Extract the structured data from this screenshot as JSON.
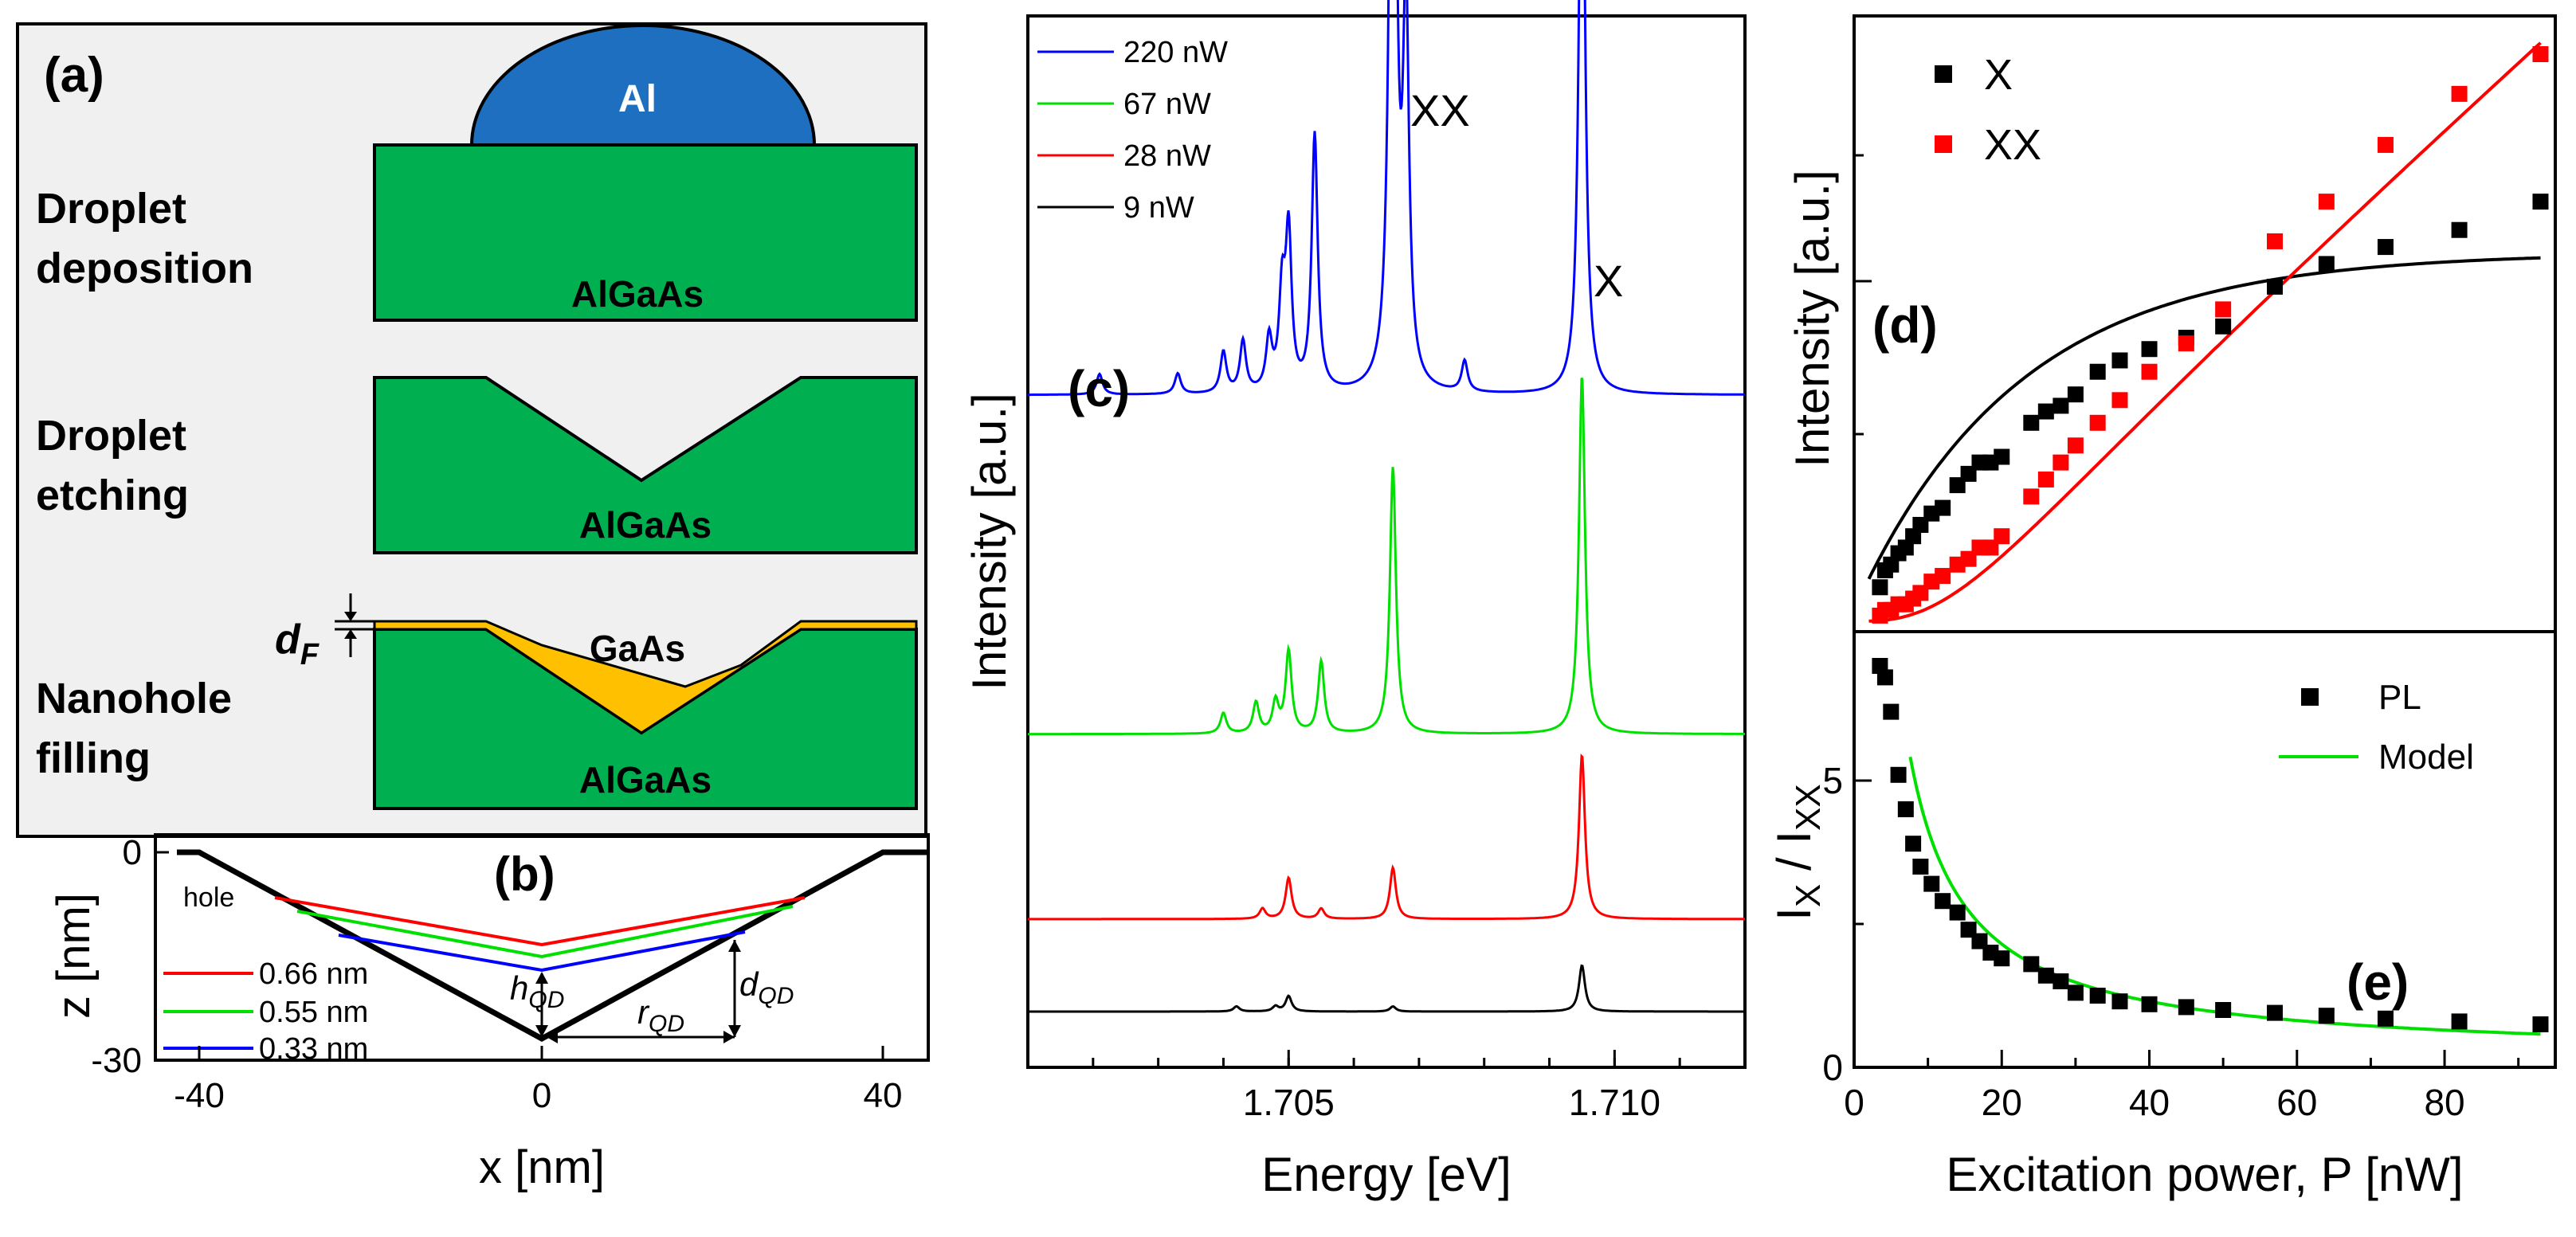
{
  "panel_a": {
    "label": "(a)",
    "droplet_label": "Al",
    "steps": [
      {
        "name": "Droplet deposition",
        "line1": "Droplet",
        "line2": "deposition",
        "substrate": "AlGaAs"
      },
      {
        "name": "Droplet etching",
        "line1": "Droplet",
        "line2": "etching",
        "substrate": "AlGaAs"
      },
      {
        "name": "Nanohole filling",
        "line1": "Nanohole",
        "line2": "filling",
        "substrate": "AlGaAs"
      }
    ],
    "fill_label": "GaAs",
    "thickness_label": "d",
    "thickness_sub": "F",
    "colors": {
      "substrate": "#00b050",
      "droplet": "#1f6fc1",
      "gaas": "#ffc000",
      "background": "#f0f0f0"
    }
  },
  "panel_b": {
    "label": "(b)",
    "hole_label": "hole",
    "ylabel": "z [nm]",
    "xlabel": "x [nm]",
    "x_ticks": [
      "-40",
      "0",
      "40"
    ],
    "y_ticks": [
      "0",
      "-30"
    ],
    "h_label": "h",
    "h_sub": "QD",
    "r_label": "r",
    "r_sub": "QD",
    "d_label": "d",
    "d_sub": "QD",
    "legend": [
      {
        "name": "0.66 nm",
        "color": "#ff0000"
      },
      {
        "name": "0.55 nm",
        "color": "#00e000"
      },
      {
        "name": "0.33 nm",
        "color": "#0000ff"
      }
    ]
  },
  "chart_data": [
    {
      "type": "line",
      "panel": "(c)",
      "title": "",
      "xlabel": "Energy [eV]",
      "ylabel": "Intensity [a.u.]",
      "xlim": [
        1.701,
        1.712
      ],
      "x_ticks": [
        "1.705",
        "1.710"
      ],
      "peak_labels": [
        "XX",
        "X"
      ],
      "series": [
        {
          "name": "220 nW",
          "color": "#0000ff",
          "offset": 0.6,
          "peaks": [
            [
              1.7021,
              0.02
            ],
            [
              1.7033,
              0.02
            ],
            [
              1.704,
              0.04
            ],
            [
              1.7043,
              0.05
            ],
            [
              1.7047,
              0.05
            ],
            [
              1.7049,
              0.09
            ],
            [
              1.705,
              0.15
            ],
            [
              1.7054,
              0.25
            ],
            [
              1.7066,
              0.93
            ],
            [
              1.7068,
              0.36
            ],
            [
              1.7077,
              0.03
            ],
            [
              1.7095,
              0.65
            ]
          ]
        },
        {
          "name": "67 nW",
          "color": "#00e000",
          "offset": 0.27,
          "peaks": [
            [
              1.704,
              0.02
            ],
            [
              1.7045,
              0.03
            ],
            [
              1.7048,
              0.03
            ],
            [
              1.705,
              0.08
            ],
            [
              1.7055,
              0.07
            ],
            [
              1.7066,
              0.26
            ],
            [
              1.7095,
              0.35
            ]
          ]
        },
        {
          "name": "28 nW",
          "color": "#ff0000",
          "offset": 0.09,
          "peaks": [
            [
              1.7046,
              0.01
            ],
            [
              1.705,
              0.04
            ],
            [
              1.7055,
              0.01
            ],
            [
              1.7066,
              0.05
            ],
            [
              1.7095,
              0.16
            ]
          ]
        },
        {
          "name": "9 nW",
          "color": "#000000",
          "offset": 0.0,
          "peaks": [
            [
              1.7042,
              0.005
            ],
            [
              1.7048,
              0.005
            ],
            [
              1.705,
              0.015
            ],
            [
              1.7066,
              0.005
            ],
            [
              1.7095,
              0.045
            ]
          ]
        }
      ]
    },
    {
      "type": "scatter",
      "panel": "(d)",
      "xlabel": "",
      "ylabel": "Intensity [a.u.]",
      "xlim": [
        0,
        95
      ],
      "ylim": [
        0,
        1
      ],
      "series": [
        {
          "name": "X",
          "color": "#000000",
          "x": [
            3.5,
            4.2,
            5,
            6,
            7,
            8,
            9,
            10.5,
            12,
            14,
            15.5,
            17,
            18.5,
            20,
            24,
            26,
            28,
            30,
            33,
            36,
            40,
            45,
            50,
            57,
            64,
            72,
            82,
            93
          ],
          "y": [
            0.06,
            0.09,
            0.1,
            0.12,
            0.13,
            0.15,
            0.17,
            0.19,
            0.2,
            0.24,
            0.26,
            0.28,
            0.28,
            0.29,
            0.35,
            0.37,
            0.38,
            0.4,
            0.44,
            0.46,
            0.48,
            0.5,
            0.52,
            0.59,
            0.63,
            0.66,
            0.69,
            0.74
          ]
        },
        {
          "name": "XX",
          "color": "#ff0000",
          "x": [
            3.5,
            4.2,
            5,
            6,
            7,
            8,
            9,
            10.5,
            12,
            14,
            15.5,
            17,
            18.5,
            20,
            24,
            26,
            28,
            30,
            33,
            36,
            40,
            45,
            50,
            57,
            64,
            72,
            82,
            93
          ],
          "y": [
            0.01,
            0.02,
            0.02,
            0.03,
            0.03,
            0.04,
            0.05,
            0.07,
            0.08,
            0.1,
            0.11,
            0.13,
            0.13,
            0.15,
            0.22,
            0.25,
            0.28,
            0.31,
            0.35,
            0.39,
            0.44,
            0.49,
            0.55,
            0.67,
            0.74,
            0.84,
            0.93,
            1.0
          ]
        },
        {
          "name": "X fit",
          "color": "#000000",
          "fit": "saturation",
          "y_sat": 0.62
        },
        {
          "name": "XX fit",
          "color": "#ff0000",
          "fit": "sigmoid"
        }
      ]
    },
    {
      "type": "scatter",
      "panel": "(e)",
      "xlabel": "Excitation power, P [nW]",
      "ylabel": "I_X / I_XX",
      "xlim": [
        0,
        95
      ],
      "ylim": [
        0,
        7.5
      ],
      "x_ticks": [
        "0",
        "20",
        "40",
        "60",
        "80"
      ],
      "y_ticks": [
        "0",
        "5"
      ],
      "series": [
        {
          "name": "PL",
          "color": "#000000",
          "x": [
            3.5,
            4.2,
            5,
            6,
            7,
            8,
            9,
            10.5,
            12,
            14,
            15.5,
            17,
            18.5,
            20,
            24,
            26,
            28,
            30,
            33,
            36,
            40,
            45,
            50,
            57,
            64,
            72,
            82,
            93
          ],
          "y": [
            7.0,
            6.8,
            6.2,
            5.1,
            4.5,
            3.9,
            3.5,
            3.2,
            2.9,
            2.7,
            2.4,
            2.2,
            2.0,
            1.9,
            1.8,
            1.6,
            1.5,
            1.3,
            1.25,
            1.15,
            1.1,
            1.05,
            1.0,
            0.95,
            0.9,
            0.85,
            0.8,
            0.75
          ]
        },
        {
          "name": "Model",
          "color": "#00e000",
          "fit": "inverse"
        }
      ]
    }
  ],
  "labels": {
    "c": "(c)",
    "d": "(d)",
    "e": "(e)",
    "c_legend": [
      "220 nW",
      "67 nW",
      "28 nW",
      "9 nW"
    ],
    "d_legend": [
      "X",
      "XX"
    ],
    "e_legend": [
      "PL",
      "Model"
    ],
    "xx_peak": "XX",
    "x_peak": "X",
    "e_ylabel_main": "I",
    "e_ylabel_sub1": "X",
    "e_ylabel_sep": " / I",
    "e_ylabel_sub2": "XX"
  }
}
